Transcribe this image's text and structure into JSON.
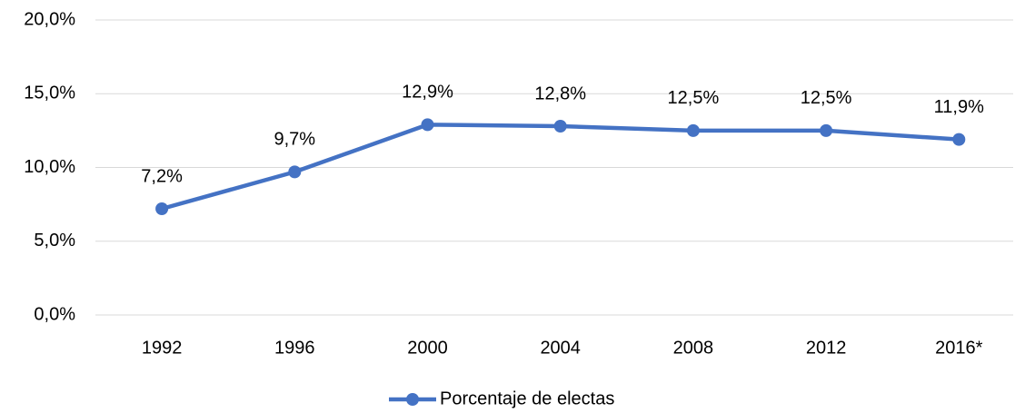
{
  "chart_data": {
    "type": "line",
    "categories": [
      "1992",
      "1996",
      "2000",
      "2004",
      "2008",
      "2012",
      "2016*"
    ],
    "series": [
      {
        "name": "Porcentaje de electas",
        "color": "#4472c4",
        "values": [
          7.2,
          9.7,
          12.9,
          12.8,
          12.5,
          12.5,
          11.9
        ],
        "value_labels": [
          "7,2%",
          "9,7%",
          "12,9%",
          "12,8%",
          "12,5%",
          "12,5%",
          "11,9%"
        ]
      }
    ],
    "ylim": [
      0,
      20
    ],
    "yticks": [
      {
        "value": 0,
        "label": "0,0%"
      },
      {
        "value": 5,
        "label": "5,0%"
      },
      {
        "value": 10,
        "label": "10,0%"
      },
      {
        "value": 15,
        "label": "15,0%"
      },
      {
        "value": 20,
        "label": "20,0%"
      }
    ],
    "grid": true,
    "legend": "bottom"
  }
}
